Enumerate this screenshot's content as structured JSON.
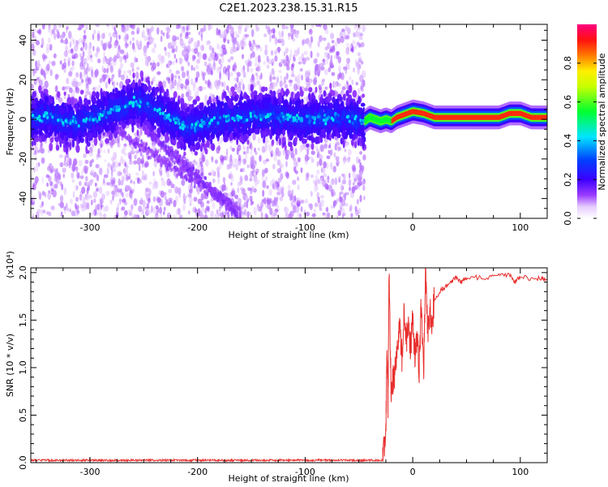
{
  "chart_data": [
    {
      "type": "heatmap",
      "title": "C2E1.2023.238.15.31.R15",
      "xlabel": "Height of straight line (km)",
      "ylabel": "Frequency (Hz)",
      "xlim": [
        -355,
        125
      ],
      "ylim": [
        -50,
        48
      ],
      "x_ticks": [
        -300,
        -200,
        -100,
        0,
        100
      ],
      "x_tick_labels": [
        "-300",
        "-200",
        "-100",
        "0",
        "100"
      ],
      "y_ticks": [
        -40,
        -20,
        0,
        20,
        40
      ],
      "y_tick_labels": [
        "-40",
        "-20",
        "0",
        "20",
        "40"
      ],
      "colorbar": {
        "label": "Normalized spectral amplitude",
        "ticks": [
          0.0,
          0.2,
          0.4,
          0.6,
          0.8
        ],
        "tick_labels": [
          "0.0",
          "0.2",
          "0.4",
          "0.6",
          "0.8"
        ],
        "range": [
          0,
          1
        ],
        "colormap": "rainbow (white-violet-blue-cyan-green-yellow-orange-red-magenta)"
      },
      "dominant_track": {
        "x": [
          -355,
          -340,
          -320,
          -300,
          -280,
          -260,
          -250,
          -240,
          -230,
          -220,
          -210,
          -200,
          -180,
          -160,
          -140,
          -120,
          -100,
          -80,
          -60,
          -45,
          -40,
          -35,
          -30,
          -25,
          -20,
          -15,
          -10,
          -5,
          0,
          10,
          20,
          40,
          60,
          80,
          90,
          100,
          110,
          125
        ],
        "y": [
          0,
          2,
          -2,
          0,
          4,
          8,
          8,
          5,
          2,
          -1,
          -4,
          -3,
          0,
          1,
          2,
          1,
          0,
          1,
          0,
          -1,
          1,
          0,
          -1,
          0,
          -1,
          1,
          2,
          3,
          4,
          3,
          1,
          1,
          1,
          1,
          3,
          3,
          1,
          1
        ]
      },
      "scatter_region_x": [
        -355,
        -45
      ],
      "high_snr_region_x": [
        -45,
        125
      ]
    },
    {
      "type": "line",
      "title": "",
      "xlabel": "Height of straight line (km)",
      "ylabel": "SNR (10 * v/v)",
      "scale_label": "(x10⁴)",
      "xlim": [
        -355,
        125
      ],
      "ylim": [
        0.0,
        2.05
      ],
      "x_ticks": [
        -300,
        -200,
        -100,
        0,
        100
      ],
      "x_tick_labels": [
        "-300",
        "-200",
        "-100",
        "0",
        "100"
      ],
      "y_ticks": [
        0.0,
        0.5,
        1.0,
        1.5,
        2.0
      ],
      "y_tick_labels": [
        "0.0",
        "0.5",
        "1.0",
        "1.5",
        "2.0"
      ],
      "series": [
        {
          "color": "#e8302e",
          "x": [
            -355,
            -300,
            -200,
            -100,
            -40,
            -28,
            -25,
            -24,
            -23,
            -22,
            -20,
            -18,
            -16,
            -14,
            -12,
            -10,
            -8,
            -6,
            -4,
            -2,
            0,
            2,
            4,
            6,
            8,
            10,
            12,
            14,
            16,
            18,
            20,
            25,
            30,
            35,
            40,
            45,
            50,
            60,
            70,
            80,
            90,
            95,
            100,
            110,
            120,
            125
          ],
          "y": [
            0.02,
            0.02,
            0.02,
            0.02,
            0.02,
            0.05,
            0.3,
            1.2,
            0.6,
            2.05,
            0.7,
            0.9,
            1.0,
            1.3,
            1.5,
            1.1,
            1.6,
            1.3,
            1.4,
            1.2,
            1.5,
            1.1,
            1.3,
            1.0,
            1.7,
            0.9,
            2.05,
            1.4,
            1.6,
            1.5,
            1.7,
            1.8,
            1.85,
            1.9,
            1.95,
            1.9,
            1.95,
            1.95,
            1.95,
            1.97,
            1.98,
            1.9,
            1.96,
            1.93,
            1.94,
            1.92
          ]
        }
      ]
    }
  ],
  "colors": {
    "line": "#e8302e",
    "frame": "#000000"
  }
}
